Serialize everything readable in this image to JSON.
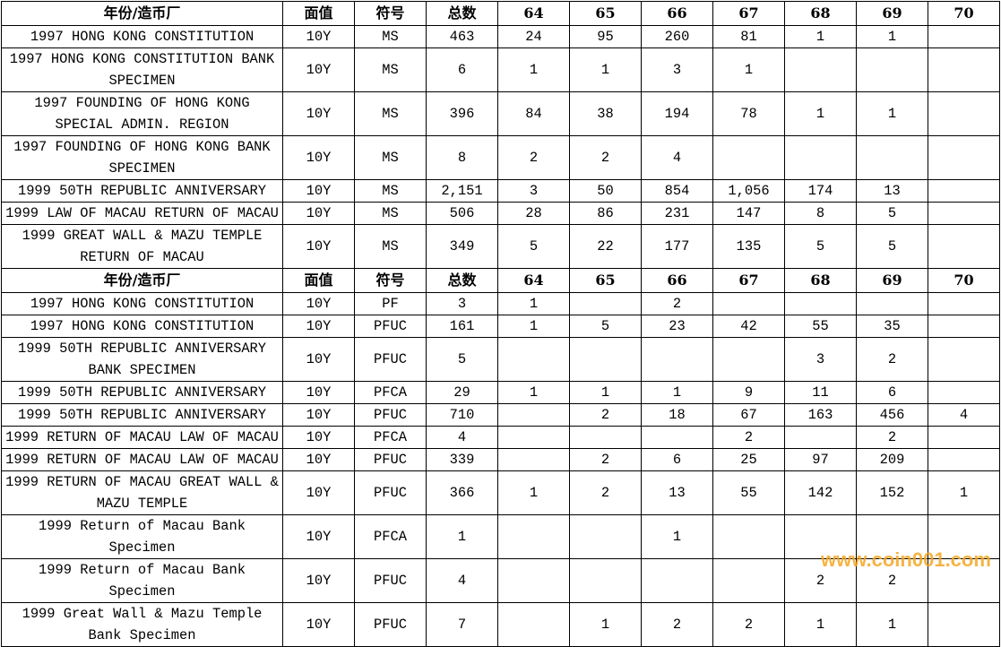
{
  "headers": [
    "年份/造币厂",
    "面值",
    "符号",
    "总数",
    "64",
    "65",
    "66",
    "67",
    "68",
    "69",
    "70"
  ],
  "section1": [
    {
      "name": "1997 HONG KONG CONSTITUTION",
      "denom": "10Y",
      "grade": "MS",
      "total": "463",
      "counts": [
        "24",
        "95",
        "260",
        "81",
        "1",
        "1",
        ""
      ]
    },
    {
      "name": "1997 HONG KONG CONSTITUTION BANK SPECIMEN",
      "denom": "10Y",
      "grade": "MS",
      "total": "6",
      "counts": [
        "1",
        "1",
        "3",
        "1",
        "",
        "",
        ""
      ]
    },
    {
      "name": "1997 FOUNDING OF HONG KONG SPECIAL ADMIN. REGION",
      "denom": "10Y",
      "grade": "MS",
      "total": "396",
      "counts": [
        "84",
        "38",
        "194",
        "78",
        "1",
        "1",
        ""
      ]
    },
    {
      "name": "1997 FOUNDING OF HONG KONG BANK SPECIMEN",
      "denom": "10Y",
      "grade": "MS",
      "total": "8",
      "counts": [
        "2",
        "2",
        "4",
        "",
        "",
        "",
        ""
      ]
    },
    {
      "name": "1999 50TH REPUBLIC ANNIVERSARY",
      "denom": "10Y",
      "grade": "MS",
      "total": "2,151",
      "counts": [
        "3",
        "50",
        "854",
        "1,056",
        "174",
        "13",
        ""
      ]
    },
    {
      "name": "1999 LAW OF MACAU RETURN OF MACAU",
      "denom": "10Y",
      "grade": "MS",
      "total": "506",
      "counts": [
        "28",
        "86",
        "231",
        "147",
        "8",
        "5",
        ""
      ]
    },
    {
      "name": "1999 GREAT WALL & MAZU TEMPLE RETURN OF MACAU",
      "denom": "10Y",
      "grade": "MS",
      "total": "349",
      "counts": [
        "5",
        "22",
        "177",
        "135",
        "5",
        "5",
        ""
      ]
    }
  ],
  "section2": [
    {
      "name": "1997 HONG KONG CONSTITUTION",
      "denom": "10Y",
      "grade": "PF",
      "total": "3",
      "counts": [
        "1",
        "",
        "2",
        "",
        "",
        "",
        ""
      ]
    },
    {
      "name": "1997 HONG KONG CONSTITUTION",
      "denom": "10Y",
      "grade": "PFUC",
      "total": "161",
      "counts": [
        "1",
        "5",
        "23",
        "42",
        "55",
        "35",
        ""
      ]
    },
    {
      "name": "1999 50TH REPUBLIC ANNIVERSARY BANK SPECIMEN",
      "denom": "10Y",
      "grade": "PFUC",
      "total": "5",
      "counts": [
        "",
        "",
        "",
        "",
        "3",
        "2",
        ""
      ]
    },
    {
      "name": "1999 50TH REPUBLIC ANNIVERSARY",
      "denom": "10Y",
      "grade": "PFCA",
      "total": "29",
      "counts": [
        "1",
        "1",
        "1",
        "9",
        "11",
        "6",
        ""
      ]
    },
    {
      "name": "1999 50TH REPUBLIC ANNIVERSARY",
      "denom": "10Y",
      "grade": "PFUC",
      "total": "710",
      "counts": [
        "",
        "2",
        "18",
        "67",
        "163",
        "456",
        "4"
      ]
    },
    {
      "name": "1999 RETURN OF MACAU LAW OF MACAU",
      "denom": "10Y",
      "grade": "PFCA",
      "total": "4",
      "counts": [
        "",
        "",
        "",
        "2",
        "",
        "2",
        ""
      ]
    },
    {
      "name": "1999 RETURN OF MACAU LAW OF MACAU",
      "denom": "10Y",
      "grade": "PFUC",
      "total": "339",
      "counts": [
        "",
        "2",
        "6",
        "25",
        "97",
        "209",
        ""
      ]
    },
    {
      "name": "1999 RETURN OF MACAU GREAT WALL & MAZU TEMPLE",
      "denom": "10Y",
      "grade": "PFUC",
      "total": "366",
      "counts": [
        "1",
        "2",
        "13",
        "55",
        "142",
        "152",
        "1"
      ]
    },
    {
      "name": "1999 Return of Macau Bank Specimen",
      "denom": "10Y",
      "grade": "PFCA",
      "total": "1",
      "counts": [
        "",
        "",
        "1",
        "",
        "",
        "",
        ""
      ]
    },
    {
      "name": "1999 Return of Macau Bank Specimen",
      "denom": "10Y",
      "grade": "PFUC",
      "total": "4",
      "counts": [
        "",
        "",
        "",
        "",
        "2",
        "2",
        ""
      ]
    },
    {
      "name": "1999 Great Wall & Mazu Temple Bank Specimen",
      "denom": "10Y",
      "grade": "PFUC",
      "total": "7",
      "counts": [
        "",
        "1",
        "2",
        "2",
        "1",
        "1",
        ""
      ]
    }
  ],
  "watermark": "www.coin001.com",
  "colors": {
    "watermark": "#f5a623",
    "grid": "#000000"
  }
}
